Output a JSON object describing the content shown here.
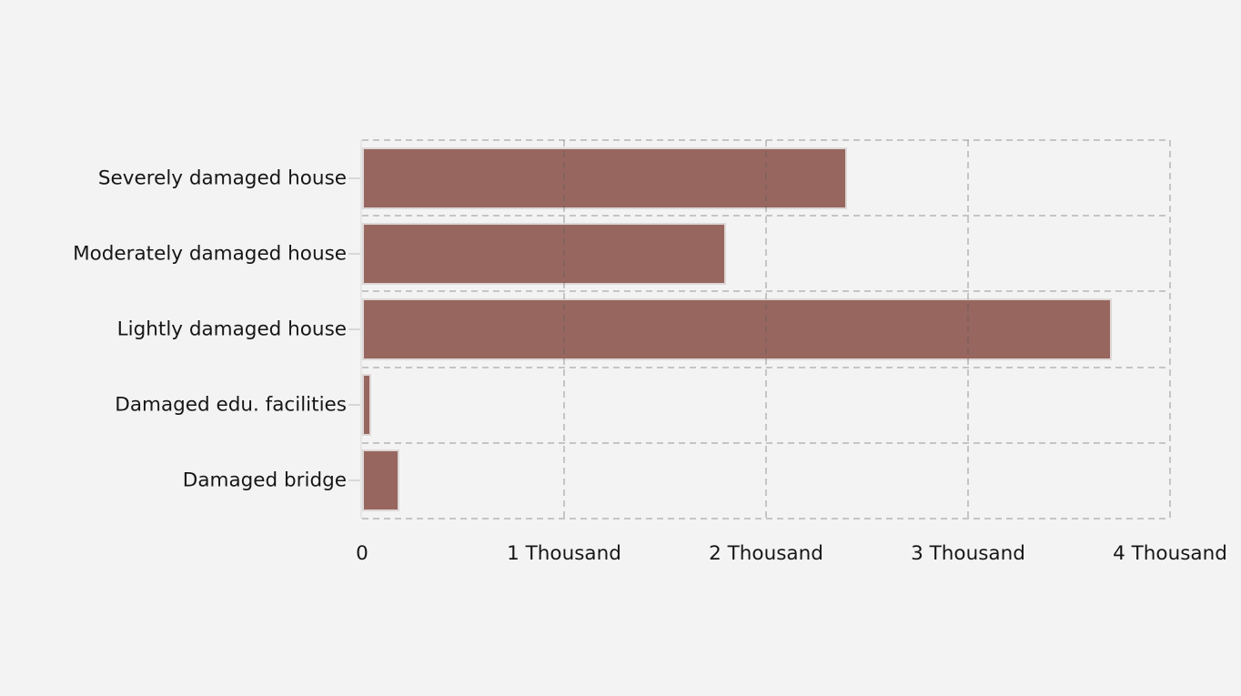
{
  "colors": {
    "background": "#f4f3f4",
    "bar_fill": "#97665f",
    "bar_outline": "#ddd8d6",
    "gridline": "rgba(90,90,90,0.30)",
    "axis_line": "#e7e5e6",
    "tick_mark": "#d9d7d8",
    "text": "#161616"
  },
  "chart_data": {
    "type": "bar",
    "orientation": "horizontal",
    "title": "",
    "xlabel": "",
    "ylabel": "",
    "categories": [
      "Severely damaged house",
      "Moderately damaged house",
      "Lightly damaged house",
      "Damaged edu. facilities",
      "Damaged bridge"
    ],
    "values": [
      2400,
      1800,
      3710,
      45,
      185
    ],
    "xlim": [
      0,
      4000
    ],
    "x_ticks": [
      0,
      1000,
      2000,
      3000,
      4000
    ],
    "x_tick_labels": [
      "0",
      "1 Thousand",
      "2 Thousand",
      "3 Thousand",
      "4 Thousand"
    ],
    "grid": "dashed, drawn over bars; dashed border on top/right/bottom, solid axis line on left",
    "legend": false
  }
}
